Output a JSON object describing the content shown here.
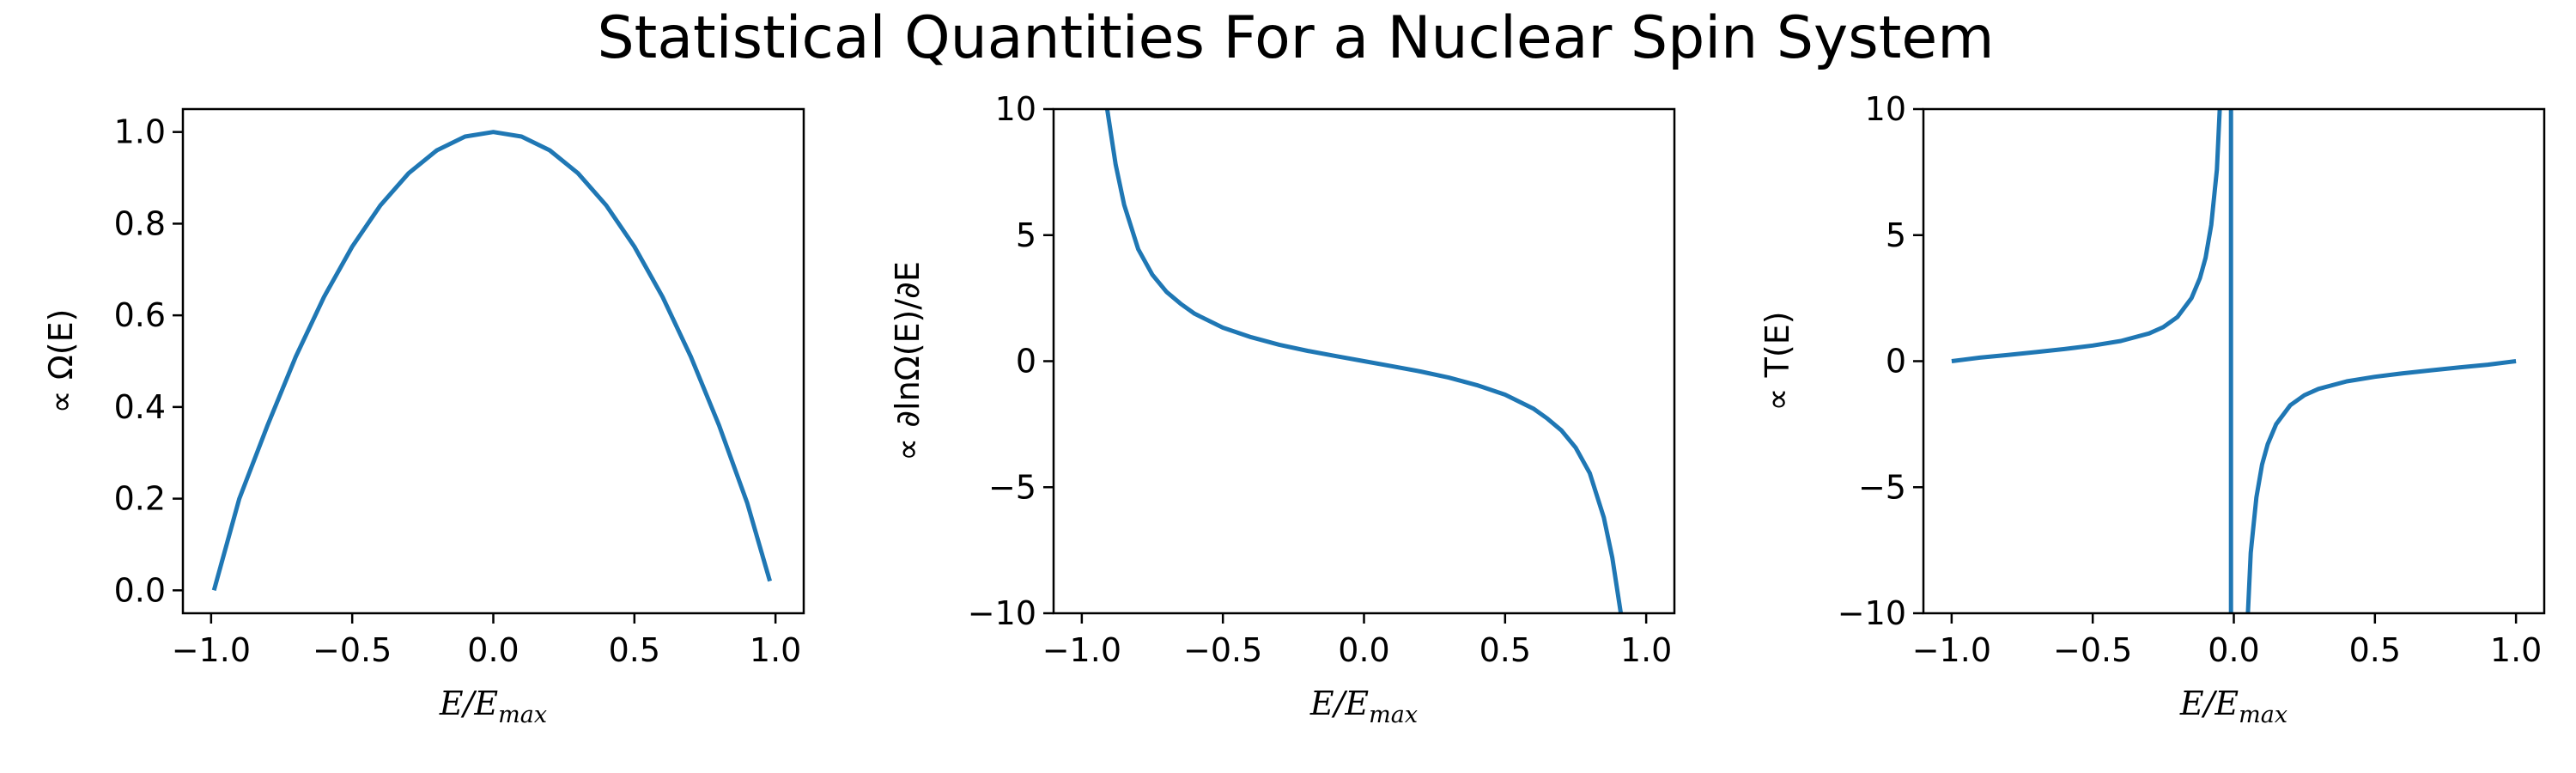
{
  "title": "Statistical Quantities For a Nuclear Spin System",
  "colors": {
    "series": "#1f77b4",
    "axes": "#000000",
    "background": "#ffffff"
  },
  "chart_data": [
    {
      "type": "line",
      "xlabel": {
        "main": "E/E",
        "sub": "max"
      },
      "ylabel": "∝ Ω(E)",
      "xlim": [
        -1.1,
        1.1
      ],
      "ylim": [
        -0.05,
        1.05
      ],
      "xticks": [
        -1.0,
        -0.5,
        0.0,
        0.5,
        1.0
      ],
      "xtick_labels": [
        "−1.0",
        "−0.5",
        "0.0",
        "0.5",
        "1.0"
      ],
      "yticks": [
        0.0,
        0.2,
        0.4,
        0.6,
        0.8,
        1.0
      ],
      "ytick_labels": [
        "0.0",
        "0.2",
        "0.4",
        "0.6",
        "0.8",
        "1.0"
      ],
      "grid": false,
      "series": [
        {
          "x": [
            -0.99,
            -0.9,
            -0.8,
            -0.7,
            -0.6,
            -0.5,
            -0.4,
            -0.3,
            -0.2,
            -0.1,
            0.0,
            0.1,
            0.2,
            0.3,
            0.4,
            0.5,
            0.6,
            0.7,
            0.8,
            0.9,
            0.98
          ],
          "y": [
            0.0,
            0.2,
            0.36,
            0.51,
            0.64,
            0.75,
            0.84,
            0.91,
            0.96,
            0.99,
            1.0,
            0.99,
            0.96,
            0.91,
            0.84,
            0.75,
            0.64,
            0.51,
            0.36,
            0.19,
            0.02
          ]
        }
      ]
    },
    {
      "type": "line",
      "xlabel": {
        "main": "E/E",
        "sub": "max"
      },
      "ylabel": "∝ ∂lnΩ(E)/∂E",
      "xlim": [
        -1.1,
        1.1
      ],
      "ylim": [
        -10,
        10
      ],
      "xticks": [
        -1.0,
        -0.5,
        0.0,
        0.5,
        1.0
      ],
      "xtick_labels": [
        "−1.0",
        "−0.5",
        "0.0",
        "0.5",
        "1.0"
      ],
      "yticks": [
        -10,
        -5,
        0,
        5,
        10
      ],
      "ytick_labels": [
        "−10",
        "−5",
        "0",
        "5",
        "10"
      ],
      "grid": false,
      "series": [
        {
          "x": [
            -0.91,
            -0.88,
            -0.85,
            -0.8,
            -0.75,
            -0.7,
            -0.65,
            -0.6,
            -0.5,
            -0.4,
            -0.3,
            -0.2,
            -0.1,
            0.0,
            0.1,
            0.2,
            0.3,
            0.4,
            0.5,
            0.6,
            0.65,
            0.7,
            0.75,
            0.8,
            0.85,
            0.88,
            0.91
          ],
          "y": [
            10.0,
            7.8,
            6.2,
            4.44,
            3.43,
            2.75,
            2.28,
            1.88,
            1.33,
            0.95,
            0.65,
            0.41,
            0.2,
            0.0,
            -0.2,
            -0.41,
            -0.65,
            -0.95,
            -1.33,
            -1.88,
            -2.28,
            -2.75,
            -3.43,
            -4.44,
            -6.2,
            -7.8,
            -10.0
          ]
        }
      ]
    },
    {
      "type": "line",
      "xlabel": {
        "main": "E/E",
        "sub": "max"
      },
      "ylabel": "∝ T(E)",
      "xlim": [
        -1.1,
        1.1
      ],
      "ylim": [
        -10,
        10
      ],
      "xticks": [
        -1.0,
        -0.5,
        0.0,
        0.5,
        1.0
      ],
      "xtick_labels": [
        "−1.0",
        "−0.5",
        "0.0",
        "0.5",
        "1.0"
      ],
      "yticks": [
        -10,
        -5,
        0,
        5,
        10
      ],
      "ytick_labels": [
        "−10",
        "−5",
        "0",
        "5",
        "10"
      ],
      "grid": false,
      "series": [
        {
          "x": [
            -1.0,
            -0.9,
            -0.8,
            -0.7,
            -0.6,
            -0.5,
            -0.4,
            -0.3,
            -0.25,
            -0.2,
            -0.15,
            -0.12,
            -0.1,
            -0.08,
            -0.06,
            -0.05
          ],
          "y": [
            0.0,
            0.14,
            0.25,
            0.36,
            0.48,
            0.62,
            0.8,
            1.1,
            1.35,
            1.75,
            2.5,
            3.3,
            4.1,
            5.4,
            7.6,
            10.0
          ]
        },
        {
          "x": [
            -0.01,
            -0.01
          ],
          "y": [
            10.0,
            -10.0
          ]
        },
        {
          "x": [
            0.05,
            0.06,
            0.08,
            0.1,
            0.12,
            0.15,
            0.2,
            0.25,
            0.3,
            0.4,
            0.5,
            0.6,
            0.7,
            0.8,
            0.9,
            1.0
          ],
          "y": [
            -10.0,
            -7.6,
            -5.4,
            -4.1,
            -3.3,
            -2.5,
            -1.75,
            -1.35,
            -1.1,
            -0.8,
            -0.62,
            -0.48,
            -0.36,
            -0.25,
            -0.14,
            0.0
          ]
        }
      ]
    }
  ]
}
